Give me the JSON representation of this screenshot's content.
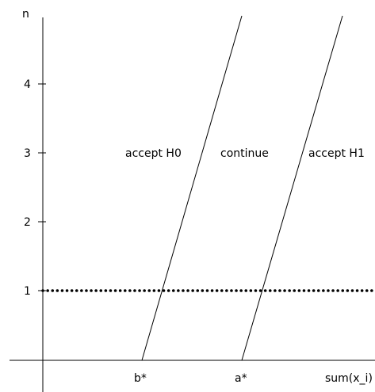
{
  "axes": {
    "y_label": "n",
    "x_label": "sum(x_i)",
    "y_ticks": [
      "1",
      "2",
      "3",
      "4"
    ]
  },
  "x_marks": {
    "lower": "b*",
    "upper": "a*"
  },
  "regions": {
    "left": "accept H0",
    "middle": "continue",
    "right": "accept H1"
  },
  "reference_line": {
    "n": 1,
    "style": "dotted"
  },
  "colors": {
    "ink": "#000000",
    "background": "#ffffff"
  }
}
